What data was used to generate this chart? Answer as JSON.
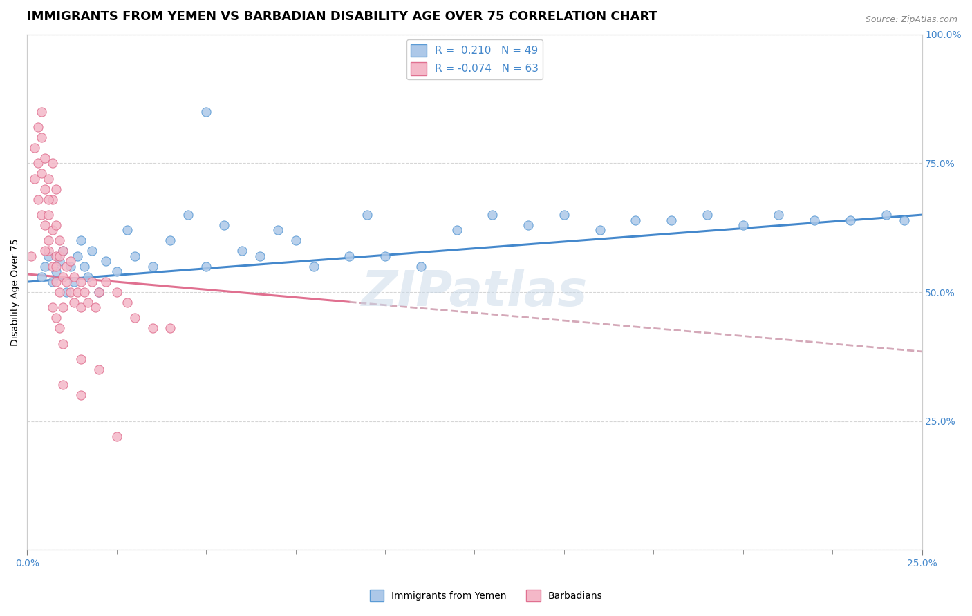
{
  "title": "IMMIGRANTS FROM YEMEN VS BARBADIAN DISABILITY AGE OVER 75 CORRELATION CHART",
  "source_text": "Source: ZipAtlas.com",
  "ylabel": "Disability Age Over 75",
  "xlim": [
    0.0,
    0.25
  ],
  "ylim": [
    0.0,
    1.0
  ],
  "y_ticks_right": [
    0.25,
    0.5,
    0.75,
    1.0
  ],
  "y_tick_labels_right": [
    "25.0%",
    "50.0%",
    "75.0%",
    "100.0%"
  ],
  "legend_r1": "R =  0.210",
  "legend_n1": "N = 49",
  "legend_r2": "R = -0.074",
  "legend_n2": "N = 63",
  "blue_color": "#adc8e8",
  "blue_edge": "#5b9bd5",
  "pink_color": "#f4b8c8",
  "pink_edge": "#e07090",
  "trend_blue_color": "#4488cc",
  "trend_pink_solid": "#e07090",
  "trend_pink_dash": "#d4a8b8",
  "background_color": "#ffffff",
  "grid_color": "#cccccc",
  "title_fontsize": 13,
  "label_fontsize": 10,
  "tick_fontsize": 10,
  "blue_scatter_x": [
    0.004,
    0.005,
    0.006,
    0.007,
    0.008,
    0.009,
    0.01,
    0.011,
    0.012,
    0.013,
    0.014,
    0.015,
    0.016,
    0.017,
    0.018,
    0.02,
    0.022,
    0.025,
    0.028,
    0.03,
    0.035,
    0.04,
    0.045,
    0.05,
    0.055,
    0.06,
    0.065,
    0.07,
    0.075,
    0.08,
    0.09,
    0.095,
    0.1,
    0.11,
    0.12,
    0.13,
    0.14,
    0.15,
    0.16,
    0.17,
    0.18,
    0.19,
    0.2,
    0.21,
    0.22,
    0.23,
    0.24,
    0.245,
    0.05
  ],
  "blue_scatter_y": [
    0.53,
    0.55,
    0.57,
    0.52,
    0.54,
    0.56,
    0.58,
    0.5,
    0.55,
    0.52,
    0.57,
    0.6,
    0.55,
    0.53,
    0.58,
    0.5,
    0.56,
    0.54,
    0.62,
    0.57,
    0.55,
    0.6,
    0.65,
    0.55,
    0.63,
    0.58,
    0.57,
    0.62,
    0.6,
    0.55,
    0.57,
    0.65,
    0.57,
    0.55,
    0.62,
    0.65,
    0.63,
    0.65,
    0.62,
    0.64,
    0.64,
    0.65,
    0.63,
    0.65,
    0.64,
    0.64,
    0.65,
    0.64,
    0.85
  ],
  "pink_scatter_x": [
    0.001,
    0.002,
    0.002,
    0.003,
    0.003,
    0.004,
    0.004,
    0.004,
    0.005,
    0.005,
    0.005,
    0.006,
    0.006,
    0.006,
    0.006,
    0.007,
    0.007,
    0.007,
    0.007,
    0.008,
    0.008,
    0.008,
    0.008,
    0.008,
    0.009,
    0.009,
    0.009,
    0.01,
    0.01,
    0.01,
    0.011,
    0.011,
    0.012,
    0.012,
    0.013,
    0.013,
    0.014,
    0.015,
    0.015,
    0.016,
    0.017,
    0.018,
    0.019,
    0.02,
    0.022,
    0.025,
    0.028,
    0.03,
    0.035,
    0.04,
    0.003,
    0.004,
    0.005,
    0.006,
    0.007,
    0.008,
    0.009,
    0.01,
    0.015,
    0.02,
    0.025,
    0.01,
    0.015
  ],
  "pink_scatter_y": [
    0.57,
    0.78,
    0.72,
    0.68,
    0.75,
    0.8,
    0.65,
    0.73,
    0.63,
    0.7,
    0.76,
    0.58,
    0.65,
    0.72,
    0.6,
    0.55,
    0.62,
    0.68,
    0.75,
    0.52,
    0.57,
    0.63,
    0.7,
    0.55,
    0.5,
    0.57,
    0.6,
    0.53,
    0.58,
    0.47,
    0.52,
    0.55,
    0.5,
    0.56,
    0.48,
    0.53,
    0.5,
    0.47,
    0.52,
    0.5,
    0.48,
    0.52,
    0.47,
    0.5,
    0.52,
    0.5,
    0.48,
    0.45,
    0.43,
    0.43,
    0.82,
    0.85,
    0.58,
    0.68,
    0.47,
    0.45,
    0.43,
    0.4,
    0.37,
    0.35,
    0.22,
    0.32,
    0.3
  ]
}
